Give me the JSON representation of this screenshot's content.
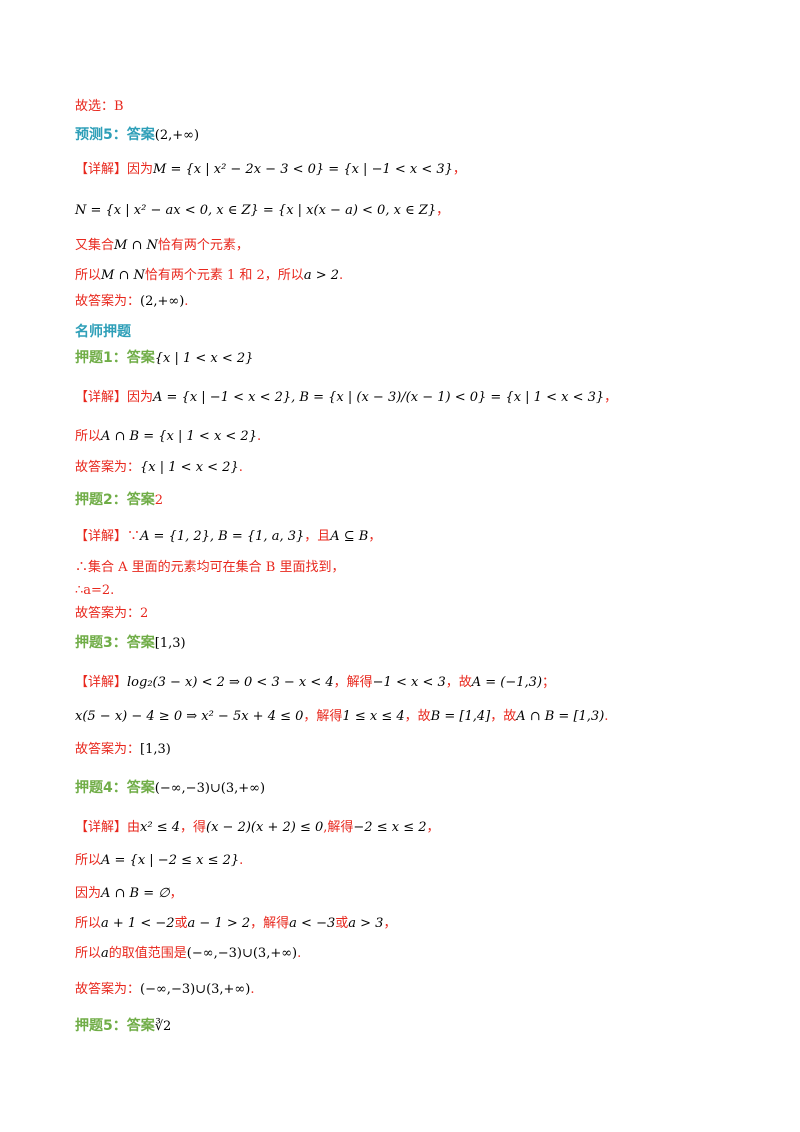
{
  "lines": [
    {
      "parts": [
        {
          "t": "故选：B",
          "c": "red"
        }
      ]
    },
    {
      "parts": [
        {
          "t": "预测5：答案",
          "c": "teal"
        },
        {
          "t": "(2,+∞)",
          "c": "ans"
        }
      ]
    },
    {
      "parts": [
        {
          "t": "【详解】因为",
          "c": "red"
        },
        {
          "t": "M = {x | x² − 2x − 3 < 0} = {x | −1 < x < 3}",
          "c": "math"
        },
        {
          "t": "，",
          "c": "red"
        }
      ]
    },
    {
      "parts": [
        {
          "t": "N = {x | x² − ax < 0, x ∈ Z} = {x | x(x − a) < 0, x ∈ Z}",
          "c": "math"
        },
        {
          "t": "，",
          "c": "red"
        }
      ]
    },
    {
      "parts": [
        {
          "t": "又集合",
          "c": "red"
        },
        {
          "t": "M ∩ N",
          "c": "math"
        },
        {
          "t": "恰有两个元素，",
          "c": "red"
        }
      ]
    },
    {
      "parts": [
        {
          "t": "所以",
          "c": "red"
        },
        {
          "t": "M ∩ N",
          "c": "math"
        },
        {
          "t": "恰有两个元素 1 和 2，所以",
          "c": "red"
        },
        {
          "t": "a > 2",
          "c": "math"
        },
        {
          "t": ".",
          "c": "red"
        }
      ]
    },
    {
      "parts": [
        {
          "t": "故答案为：",
          "c": "red"
        },
        {
          "t": "(2,+∞)",
          "c": "ans"
        },
        {
          "t": ".",
          "c": "red"
        }
      ]
    },
    {
      "parts": [
        {
          "t": "名师押题",
          "c": "teal"
        }
      ]
    },
    {
      "parts": [
        {
          "t": "押题1：答案",
          "c": "green"
        },
        {
          "t": "{x | 1 < x < 2}",
          "c": "math"
        }
      ]
    },
    {
      "parts": [
        {
          "t": "【详解】因为",
          "c": "red"
        },
        {
          "t": "A = {x | −1 < x < 2}, B = {x | (x − 3)/(x − 1) < 0} = {x | 1 < x < 3}",
          "c": "math"
        },
        {
          "t": "，",
          "c": "red"
        }
      ]
    },
    {
      "parts": [
        {
          "t": "所以",
          "c": "red"
        },
        {
          "t": "A ∩ B = {x | 1 < x < 2}",
          "c": "math"
        },
        {
          "t": ".",
          "c": "red"
        }
      ]
    },
    {
      "parts": [
        {
          "t": "故答案为：",
          "c": "red"
        },
        {
          "t": "{x | 1 < x < 2}",
          "c": "math"
        },
        {
          "t": ".",
          "c": "red"
        }
      ]
    },
    {
      "parts": [
        {
          "t": "押题2：答案",
          "c": "green"
        },
        {
          "t": "2",
          "c": "ansred"
        }
      ]
    },
    {
      "parts": [
        {
          "t": "【详解】∵",
          "c": "red"
        },
        {
          "t": "A = {1, 2}, B = {1, a, 3}",
          "c": "math"
        },
        {
          "t": "，且",
          "c": "red"
        },
        {
          "t": "A ⊆ B",
          "c": "math"
        },
        {
          "t": "，",
          "c": "red"
        }
      ]
    },
    {
      "parts": [
        {
          "t": "∴集合 A 里面的元素均可在集合 B 里面找到，",
          "c": "red"
        }
      ]
    },
    {
      "parts": [
        {
          "t": "∴a=2.",
          "c": "red"
        }
      ]
    },
    {
      "parts": [
        {
          "t": "故答案为：2",
          "c": "red"
        }
      ]
    },
    {
      "parts": [
        {
          "t": "押题3：答案",
          "c": "green"
        },
        {
          "t": "[1,3)",
          "c": "ans"
        }
      ]
    },
    {
      "parts": [
        {
          "t": "【详解】",
          "c": "red"
        },
        {
          "t": "log₂(3 − x) < 2 ⇒ 0 < 3 − x < 4",
          "c": "math"
        },
        {
          "t": "，解得",
          "c": "red"
        },
        {
          "t": "−1 < x < 3",
          "c": "math"
        },
        {
          "t": "，故",
          "c": "red"
        },
        {
          "t": "A = (−1,3)",
          "c": "math"
        },
        {
          "t": "；",
          "c": "red"
        }
      ]
    },
    {
      "parts": [
        {
          "t": "x(5 − x) − 4 ≥ 0 ⇒ x² − 5x + 4 ≤ 0",
          "c": "math"
        },
        {
          "t": "，解得",
          "c": "red"
        },
        {
          "t": "1 ≤ x ≤ 4",
          "c": "math"
        },
        {
          "t": "，故",
          "c": "red"
        },
        {
          "t": "B = [1,4]",
          "c": "math"
        },
        {
          "t": "，故",
          "c": "red"
        },
        {
          "t": "A ∩ B = [1,3)",
          "c": "math"
        },
        {
          "t": ".",
          "c": "red"
        }
      ]
    },
    {
      "parts": [
        {
          "t": "故答案为：",
          "c": "red"
        },
        {
          "t": "[1,3)",
          "c": "ans"
        }
      ]
    },
    {
      "parts": [
        {
          "t": "押题4：答案",
          "c": "green"
        },
        {
          "t": "(−∞,−3)∪(3,+∞)",
          "c": "ans"
        }
      ]
    },
    {
      "parts": [
        {
          "t": "【详解】由",
          "c": "red"
        },
        {
          "t": "x² ≤ 4",
          "c": "math"
        },
        {
          "t": "，得",
          "c": "red"
        },
        {
          "t": "(x − 2)(x + 2) ≤ 0",
          "c": "math"
        },
        {
          "t": ",解得",
          "c": "red"
        },
        {
          "t": "−2 ≤ x ≤ 2",
          "c": "math"
        },
        {
          "t": "，",
          "c": "red"
        }
      ]
    },
    {
      "parts": [
        {
          "t": "所以",
          "c": "red"
        },
        {
          "t": "A = {x | −2 ≤ x ≤ 2}",
          "c": "math"
        },
        {
          "t": ".",
          "c": "red"
        }
      ]
    },
    {
      "parts": [
        {
          "t": "因为",
          "c": "red"
        },
        {
          "t": "A ∩ B = ∅",
          "c": "math"
        },
        {
          "t": "，",
          "c": "red"
        }
      ]
    },
    {
      "parts": [
        {
          "t": "所以",
          "c": "red"
        },
        {
          "t": "a + 1 < −2",
          "c": "math"
        },
        {
          "t": "或",
          "c": "red"
        },
        {
          "t": "a − 1 > 2",
          "c": "math"
        },
        {
          "t": "，解得",
          "c": "red"
        },
        {
          "t": "a < −3",
          "c": "math"
        },
        {
          "t": "或",
          "c": "red"
        },
        {
          "t": "a > 3",
          "c": "math"
        },
        {
          "t": "，",
          "c": "red"
        }
      ]
    },
    {
      "parts": [
        {
          "t": "所以",
          "c": "red"
        },
        {
          "t": "a",
          "c": "math"
        },
        {
          "t": "的取值范围是",
          "c": "red"
        },
        {
          "t": "(−∞,−3)∪(3,+∞)",
          "c": "ans"
        },
        {
          "t": ".",
          "c": "red"
        }
      ]
    },
    {
      "parts": [
        {
          "t": "故答案为：",
          "c": "red"
        },
        {
          "t": "(−∞,−3)∪(3,+∞)",
          "c": "ans"
        },
        {
          "t": ".",
          "c": "red"
        }
      ]
    },
    {
      "parts": [
        {
          "t": "押题5：答案",
          "c": "green"
        },
        {
          "t": "∛2",
          "c": "ans"
        }
      ]
    }
  ]
}
